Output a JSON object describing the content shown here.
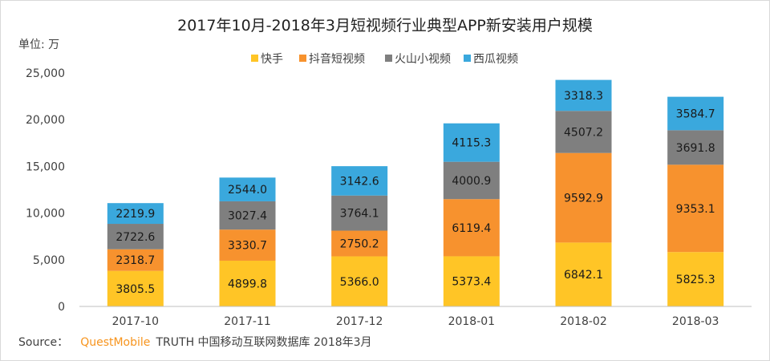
{
  "chart_data": {
    "type": "bar",
    "stacked": true,
    "title": "2017年10月-2018年3月短视频行业典型APP新安装用户规模",
    "unit_label": "单位: 万",
    "categories": [
      "2017-10",
      "2017-11",
      "2017-12",
      "2018-01",
      "2018-02",
      "2018-03"
    ],
    "ylim": [
      0,
      25000
    ],
    "yticks": [
      0,
      5000,
      10000,
      15000,
      20000,
      25000
    ],
    "ytick_labels": [
      "0",
      "5,000",
      "10,000",
      "15,000",
      "20,000",
      "25,000"
    ],
    "grid": false,
    "legend_position": "top",
    "series": [
      {
        "name": "快手",
        "color": "#ffc526",
        "values": [
          3805.5,
          4899.8,
          5366.0,
          5373.4,
          6842.1,
          5825.3
        ],
        "labels": [
          "3805.5",
          "4899.8",
          "5366.0",
          "5373.4",
          "6842.1",
          "5825.3"
        ]
      },
      {
        "name": "抖音短视频",
        "color": "#f7922e",
        "values": [
          2318.7,
          3330.7,
          2750.2,
          6119.4,
          9592.9,
          9353.1
        ],
        "labels": [
          "2318.7",
          "3330.7",
          "2750.2",
          "6119.4",
          "9592.9",
          "9353.1"
        ]
      },
      {
        "name": "火山小视频",
        "color": "#7f7f7f",
        "values": [
          2722.6,
          3027.4,
          3764.1,
          4000.9,
          4507.2,
          3691.8
        ],
        "labels": [
          "2722.6",
          "3027.4",
          "3764.1",
          "4000.9",
          "4507.2",
          "3691.8"
        ]
      },
      {
        "name": "西瓜视频",
        "color": "#3aa8dd",
        "values": [
          2219.9,
          2544.0,
          3142.6,
          4115.3,
          3318.3,
          3584.7
        ],
        "labels": [
          "2219.9",
          "2544.0",
          "3142.6",
          "4115.3",
          "3318.3",
          "3584.7"
        ]
      }
    ],
    "axis_color": "#bfbfbf"
  },
  "source": {
    "prefix": "Source：",
    "brand": "QuestMobile",
    "rest": "TRUTH 中国移动互联网数据库 2018年3月"
  }
}
